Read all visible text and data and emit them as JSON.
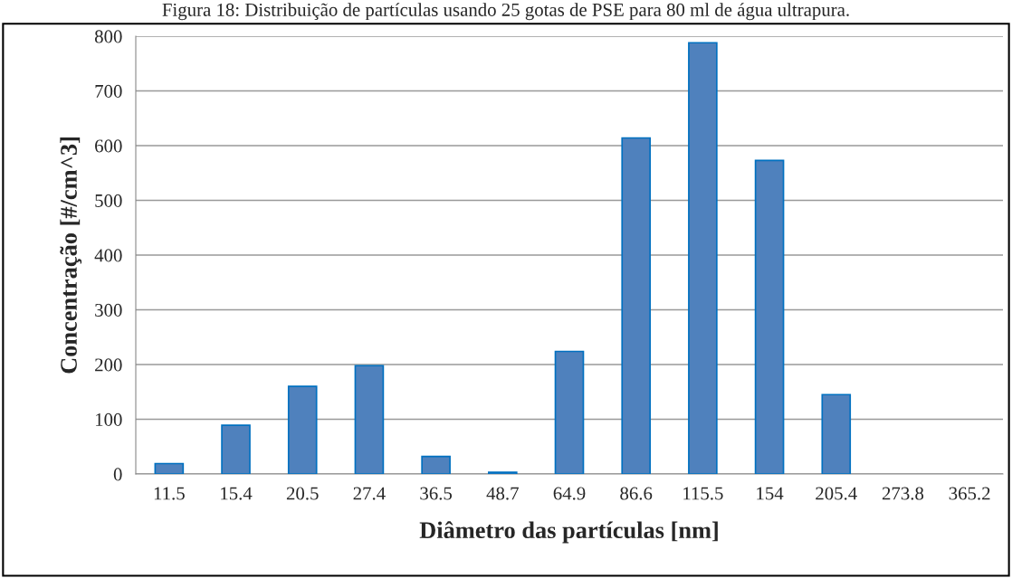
{
  "chart_data": {
    "type": "bar",
    "title": "Figura 18: Distribuição de partículas usando 25 gotas de PSE para 80 ml de água ultrapura.",
    "xlabel": "Diâmetro das partículas [nm]",
    "ylabel": "Concentração [#/cm^3]",
    "categories": [
      "11.5",
      "15.4",
      "20.5",
      "27.4",
      "36.5",
      "48.7",
      "64.9",
      "86.6",
      "115.5",
      "154",
      "205.4",
      "273.8",
      "365.2"
    ],
    "values": [
      19,
      89,
      160,
      198,
      32,
      3,
      224,
      614,
      788,
      573,
      145,
      0,
      0
    ],
    "color": "#4f81bd",
    "ylim": [
      0,
      800
    ],
    "yticks": [
      0,
      100,
      200,
      300,
      400,
      500,
      600,
      700,
      800
    ],
    "grid": "y",
    "legend": false
  }
}
